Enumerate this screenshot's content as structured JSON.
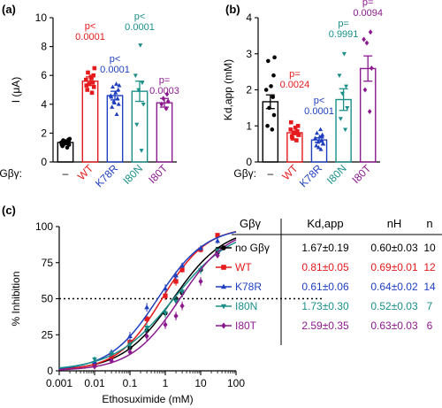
{
  "colors": {
    "no_gbg": "#000000",
    "WT": "#e41a1c",
    "K78R": "#1f3fbf",
    "I80N": "#1a8f8a",
    "I80T": "#8b1a8f"
  },
  "chart_data": [
    {
      "panel": "(a)",
      "type": "bar",
      "ylabel": "I (μA)",
      "xlabel_prefix": "Gβγ:",
      "ylim": [
        0,
        10
      ],
      "yticks": [
        0,
        2,
        4,
        6,
        8,
        10
      ],
      "categories": [
        "–",
        "WT",
        "K78R",
        "I80N",
        "I80T"
      ],
      "values": [
        1.35,
        5.6,
        4.6,
        4.9,
        4.1
      ],
      "errors": [
        0.1,
        0.3,
        0.3,
        0.7,
        0.3
      ],
      "points": [
        [
          1.0,
          1.1,
          1.2,
          1.25,
          1.3,
          1.35,
          1.4,
          1.45,
          1.5,
          1.6,
          1.2,
          1.3,
          1.45,
          1.55,
          1.4
        ],
        [
          4.8,
          5.0,
          5.2,
          5.4,
          5.5,
          5.7,
          5.9,
          6.0,
          6.2,
          6.5,
          5.3,
          5.8
        ],
        [
          3.3,
          3.8,
          4.0,
          4.2,
          4.4,
          4.6,
          4.8,
          5.0,
          5.2,
          5.3,
          4.5,
          5.4,
          4.1
        ],
        [
          0.8,
          2.6,
          4.0,
          5.0,
          5.5,
          6.0,
          8.1
        ],
        [
          3.7,
          4.0,
          4.2,
          4.4,
          4.7
        ]
      ],
      "annotations": [
        {
          "label": [
            "p<",
            "0.0001"
          ],
          "color": "#e41a1c"
        },
        {
          "label": [
            "p<",
            "0.0001"
          ],
          "color": "#1f3fbf"
        },
        {
          "label": [
            "p<",
            "0.0001"
          ],
          "color": "#1a8f8a"
        },
        {
          "label": [
            "p=",
            "0.0003"
          ],
          "color": "#8b1a8f"
        }
      ]
    },
    {
      "panel": "(b)",
      "type": "bar",
      "ylabel": "Kd,app (mM)",
      "xlabel_prefix": "Gβγ:",
      "ylim": [
        0,
        4
      ],
      "yticks": [
        0,
        1,
        2,
        3,
        4
      ],
      "categories": [
        "–",
        "WT",
        "K78R",
        "I80N",
        "I80T"
      ],
      "values": [
        1.67,
        0.81,
        0.61,
        1.73,
        2.59
      ],
      "errors": [
        0.19,
        0.05,
        0.06,
        0.3,
        0.35
      ],
      "points": [
        [
          0.9,
          1.0,
          1.3,
          1.5,
          1.8,
          2.0,
          2.1,
          2.4,
          2.8,
          2.9
        ],
        [
          0.6,
          0.7,
          0.75,
          0.8,
          0.85,
          0.9,
          0.95,
          1.0,
          0.65,
          0.75,
          1.1,
          0.8
        ],
        [
          0.35,
          0.45,
          0.5,
          0.55,
          0.6,
          0.65,
          0.7,
          0.75,
          0.8,
          0.5,
          0.65,
          0.9,
          0.4,
          0.7
        ],
        [
          0.9,
          1.2,
          1.5,
          1.9,
          2.1,
          2.4,
          3.0
        ],
        [
          1.4,
          2.0,
          2.6,
          3.3,
          3.6,
          3.4
        ]
      ],
      "annotations": [
        {
          "label": [
            "p=",
            "0.0024"
          ],
          "color": "#e41a1c"
        },
        {
          "label": [
            "p<",
            "0.0001"
          ],
          "color": "#1f3fbf"
        },
        {
          "label": [
            "p=",
            "0.9991"
          ],
          "color": "#1a8f8a"
        },
        {
          "label": [
            "p=",
            "0.0094"
          ],
          "color": "#8b1a8f"
        }
      ]
    },
    {
      "panel": "(c)",
      "type": "line",
      "xlabel": "Ethosuximide (mM)",
      "ylabel": "% Inhibition",
      "xscale": "log",
      "xlim": [
        0.001,
        100
      ],
      "ylim": [
        0,
        100
      ],
      "xtick_labels": [
        "0.001",
        "0.01",
        "0.1",
        "1",
        "10",
        "100"
      ],
      "xticks": [
        0.001,
        0.01,
        0.1,
        1,
        10,
        100
      ],
      "yticks": [
        0,
        25,
        50,
        75,
        100
      ],
      "reference_line": 50,
      "x": [
        0.01,
        0.03,
        0.1,
        0.3,
        1,
        2,
        3,
        10,
        30
      ],
      "series": [
        {
          "name": "no Gβγ",
          "key": "no_gbg",
          "marker": "circle",
          "kd": 1.67,
          "nh": 0.6,
          "y": [
            5,
            9,
            16,
            28,
            40,
            50,
            54,
            70,
            82
          ],
          "err": [
            2,
            2,
            3,
            3,
            3,
            3,
            3,
            2,
            2
          ]
        },
        {
          "name": "WT",
          "key": "WT",
          "marker": "square",
          "kd": 0.81,
          "nh": 0.69,
          "y": [
            4,
            10,
            20,
            36,
            52,
            62,
            70,
            84,
            94
          ],
          "err": [
            2,
            2,
            2,
            3,
            3,
            3,
            2,
            2,
            1
          ]
        },
        {
          "name": "K78R",
          "key": "K78R",
          "marker": "triangle-up",
          "kd": 0.61,
          "nh": 0.64,
          "y": [
            6,
            13,
            24,
            44,
            57,
            66,
            73,
            85,
            90
          ],
          "err": [
            2,
            2,
            3,
            3,
            3,
            3,
            2,
            2,
            2
          ]
        },
        {
          "name": "I80N",
          "key": "I80N",
          "marker": "triangle-down",
          "kd": 1.73,
          "nh": 0.52,
          "y": [
            8,
            12,
            18,
            30,
            40,
            48,
            55,
            70,
            84
          ],
          "err": [
            2,
            2,
            3,
            3,
            3,
            3,
            3,
            3,
            2
          ]
        },
        {
          "name": "I80T",
          "key": "I80T",
          "marker": "diamond",
          "kd": 2.59,
          "nh": 0.63,
          "y": [
            3,
            7,
            13,
            24,
            32,
            38,
            45,
            62,
            80
          ],
          "err": [
            2,
            2,
            2,
            3,
            3,
            3,
            3,
            3,
            2
          ]
        }
      ],
      "table": {
        "headers": [
          "Gβγ",
          "Kd,app",
          "nH",
          "n"
        ],
        "rows": [
          {
            "key": "no_gbg",
            "label": "no Gβγ",
            "kd": "1.67±0.19",
            "nh": "0.60±0.03",
            "n": "10"
          },
          {
            "key": "WT",
            "label": "WT",
            "kd": "0.81±0.05",
            "nh": "0.69±0.01",
            "n": "12"
          },
          {
            "key": "K78R",
            "label": "K78R",
            "kd": "0.61±0.06",
            "nh": "0.64±0.02",
            "n": "14"
          },
          {
            "key": "I80N",
            "label": "I80N",
            "kd": "1.73±0.30",
            "nh": "0.52±0.03",
            "n": "7"
          },
          {
            "key": "I80T",
            "label": "I80T",
            "kd": "2.59±0.35",
            "nh": "0.63±0.03",
            "n": "6"
          }
        ]
      }
    }
  ]
}
